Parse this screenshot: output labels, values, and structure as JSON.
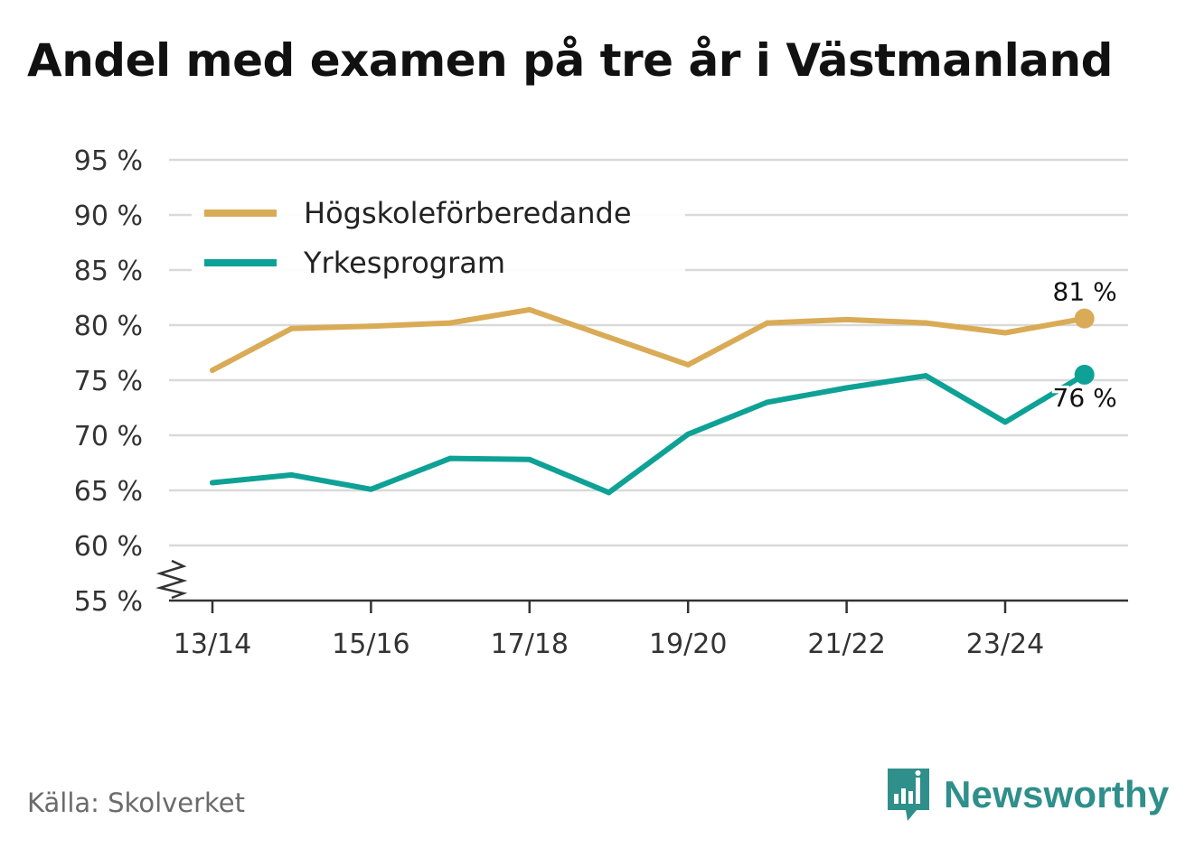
{
  "title": "Andel med examen på tre år i Västmanland",
  "source": "Källa: Skolverket",
  "brand": {
    "name": "Newsworthy",
    "icon": "newsworthy-logo-icon"
  },
  "colors": {
    "hogskole": "#d9ab56",
    "yrkes": "#0ea196",
    "grid": "#d9d9d9",
    "axis": "#333333",
    "brand": "#2f8f8a"
  },
  "chart_data": {
    "type": "line",
    "title": "Andel med examen på tre år i Västmanland",
    "xlabel": "",
    "ylabel": "",
    "ylim": [
      55,
      95
    ],
    "y_ticks": [
      55,
      60,
      65,
      70,
      75,
      80,
      85,
      90,
      95
    ],
    "y_tick_labels": [
      "55 %",
      "60 %",
      "65 %",
      "70 %",
      "75 %",
      "80 %",
      "85 %",
      "90 %",
      "95 %"
    ],
    "y_axis_break": true,
    "grid": true,
    "categories": [
      "13/14",
      "14/15",
      "15/16",
      "16/17",
      "17/18",
      "18/19",
      "19/20",
      "20/21",
      "21/22",
      "22/23",
      "23/24",
      "24/25"
    ],
    "x_tick_labels": [
      "13/14",
      "15/16",
      "17/18",
      "19/20",
      "21/22",
      "23/24"
    ],
    "series": [
      {
        "name": "Högskoleförberedande",
        "color": "#d9ab56",
        "values": [
          75.9,
          79.7,
          79.9,
          80.2,
          81.4,
          78.9,
          76.4,
          80.2,
          80.5,
          80.2,
          79.3,
          80.6
        ],
        "end_label": "81 %"
      },
      {
        "name": "Yrkesprogram",
        "color": "#0ea196",
        "values": [
          65.7,
          66.4,
          65.1,
          67.9,
          67.8,
          64.8,
          70.1,
          73.0,
          74.3,
          75.4,
          71.2,
          75.5
        ],
        "end_label": "76 %"
      }
    ],
    "legend": {
      "position": "top-left"
    }
  }
}
